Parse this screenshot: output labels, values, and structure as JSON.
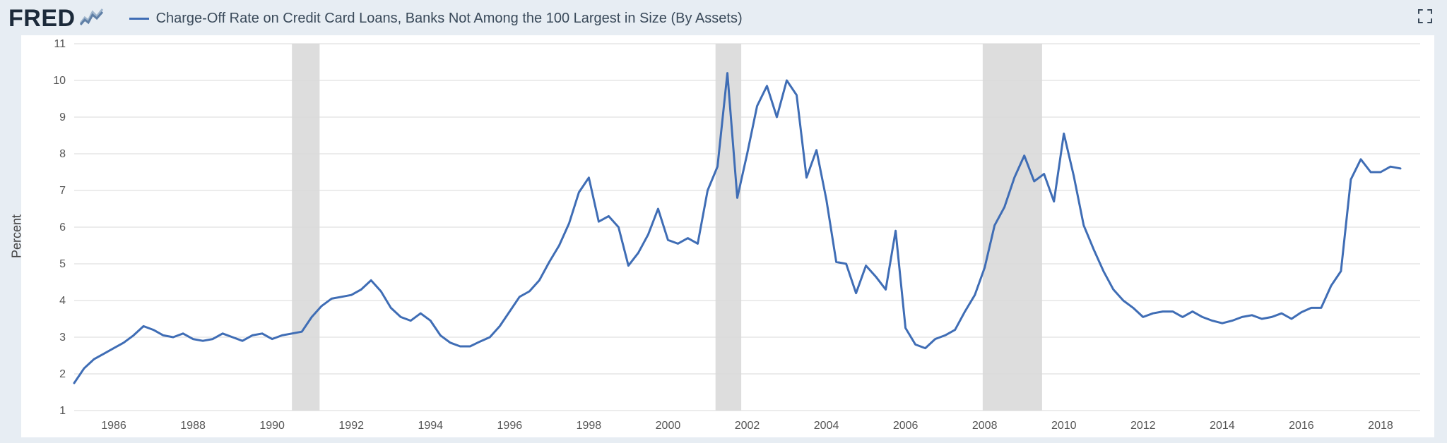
{
  "header": {
    "logo_text": "FRED",
    "series_label": "Charge-Off Rate on Credit Card Loans, Banks Not Among the 100 Largest in Size (By Assets)"
  },
  "chart": {
    "type": "line",
    "ylabel": "Percent",
    "ylim": [
      1,
      11
    ],
    "ytick_step": 1,
    "xrange": [
      1985.0,
      2019.0
    ],
    "xticks": [
      1986,
      1988,
      1990,
      1992,
      1994,
      1996,
      1998,
      2000,
      2002,
      2004,
      2006,
      2008,
      2010,
      2012,
      2014,
      2016,
      2018
    ],
    "line_color": "#3f6db5",
    "line_width": 3,
    "background_color": "#ffffff",
    "page_background": "#e7edf3",
    "grid_color": "#d9d9d9",
    "recessions": [
      {
        "start": 1990.5,
        "end": 1991.2
      },
      {
        "start": 2001.2,
        "end": 2001.85
      },
      {
        "start": 2007.95,
        "end": 2009.45
      }
    ],
    "recession_color": "#d9d9d9",
    "x": [
      1985.0,
      1985.25,
      1985.5,
      1985.75,
      1986.0,
      1986.25,
      1986.5,
      1986.75,
      1987.0,
      1987.25,
      1987.5,
      1987.75,
      1988.0,
      1988.25,
      1988.5,
      1988.75,
      1989.0,
      1989.25,
      1989.5,
      1989.75,
      1990.0,
      1990.25,
      1990.5,
      1990.75,
      1991.0,
      1991.25,
      1991.5,
      1991.75,
      1992.0,
      1992.25,
      1992.5,
      1992.75,
      1993.0,
      1993.25,
      1993.5,
      1993.75,
      1994.0,
      1994.25,
      1994.5,
      1994.75,
      1995.0,
      1995.25,
      1995.5,
      1995.75,
      1996.0,
      1996.25,
      1996.5,
      1996.75,
      1997.0,
      1997.25,
      1997.5,
      1997.75,
      1998.0,
      1998.25,
      1998.5,
      1998.75,
      1999.0,
      1999.25,
      1999.5,
      1999.75,
      2000.0,
      2000.25,
      2000.5,
      2000.75,
      2001.0,
      2001.25,
      2001.5,
      2001.75,
      2002.0,
      2002.25,
      2002.5,
      2002.75,
      2003.0,
      2003.25,
      2003.5,
      2003.75,
      2004.0,
      2004.25,
      2004.5,
      2004.75,
      2005.0,
      2005.25,
      2005.5,
      2005.75,
      2006.0,
      2006.25,
      2006.5,
      2006.75,
      2007.0,
      2007.25,
      2007.5,
      2007.75,
      2008.0,
      2008.25,
      2008.5,
      2008.75,
      2009.0,
      2009.25,
      2009.5,
      2009.75,
      2010.0,
      2010.25,
      2010.5,
      2010.75,
      2011.0,
      2011.25,
      2011.5,
      2011.75,
      2012.0,
      2012.25,
      2012.5,
      2012.75,
      2013.0,
      2013.25,
      2013.5,
      2013.75,
      2014.0,
      2014.25,
      2014.5,
      2014.75,
      2015.0,
      2015.25,
      2015.5,
      2015.75,
      2016.0,
      2016.25,
      2016.5,
      2016.75,
      2017.0,
      2017.25,
      2017.5,
      2017.75,
      2018.0,
      2018.25,
      2018.5
    ],
    "y": [
      1.75,
      2.15,
      2.4,
      2.55,
      2.7,
      2.85,
      3.05,
      3.3,
      3.2,
      3.05,
      3.0,
      3.1,
      2.95,
      2.9,
      2.95,
      3.1,
      3.0,
      2.9,
      3.05,
      3.1,
      2.95,
      3.05,
      3.1,
      3.15,
      3.55,
      3.85,
      4.05,
      4.1,
      4.15,
      4.3,
      4.55,
      4.25,
      3.8,
      3.55,
      3.45,
      3.65,
      3.45,
      3.05,
      2.85,
      2.75,
      2.75,
      2.88,
      3.0,
      3.3,
      3.7,
      4.1,
      4.25,
      4.55,
      5.05,
      5.5,
      6.1,
      6.95,
      7.35,
      6.15,
      6.3,
      6.0,
      4.95,
      5.3,
      5.8,
      6.5,
      5.65,
      5.55,
      5.7,
      5.55,
      7.0,
      7.65,
      10.2,
      6.8,
      8.0,
      9.3,
      9.85,
      9.0,
      10.0,
      9.6,
      7.35,
      8.1,
      6.75,
      5.05,
      5.0,
      4.2,
      4.95,
      4.65,
      4.3,
      5.9,
      3.25,
      2.8,
      2.7,
      2.95,
      3.05,
      3.2,
      3.7,
      4.15,
      4.9,
      6.05,
      6.55,
      7.35,
      7.95,
      7.25,
      7.45,
      6.7,
      8.55,
      7.4,
      6.05,
      5.4,
      4.8,
      4.3,
      4.0,
      3.8,
      3.55,
      3.65,
      3.7,
      3.7,
      3.55,
      3.7,
      3.55,
      3.45,
      3.38,
      3.45,
      3.55,
      3.6,
      3.5,
      3.55,
      3.65,
      3.5,
      3.68,
      3.8,
      3.8,
      4.4,
      4.8,
      7.3,
      7.85,
      7.5,
      7.5,
      7.65,
      7.6
    ]
  }
}
